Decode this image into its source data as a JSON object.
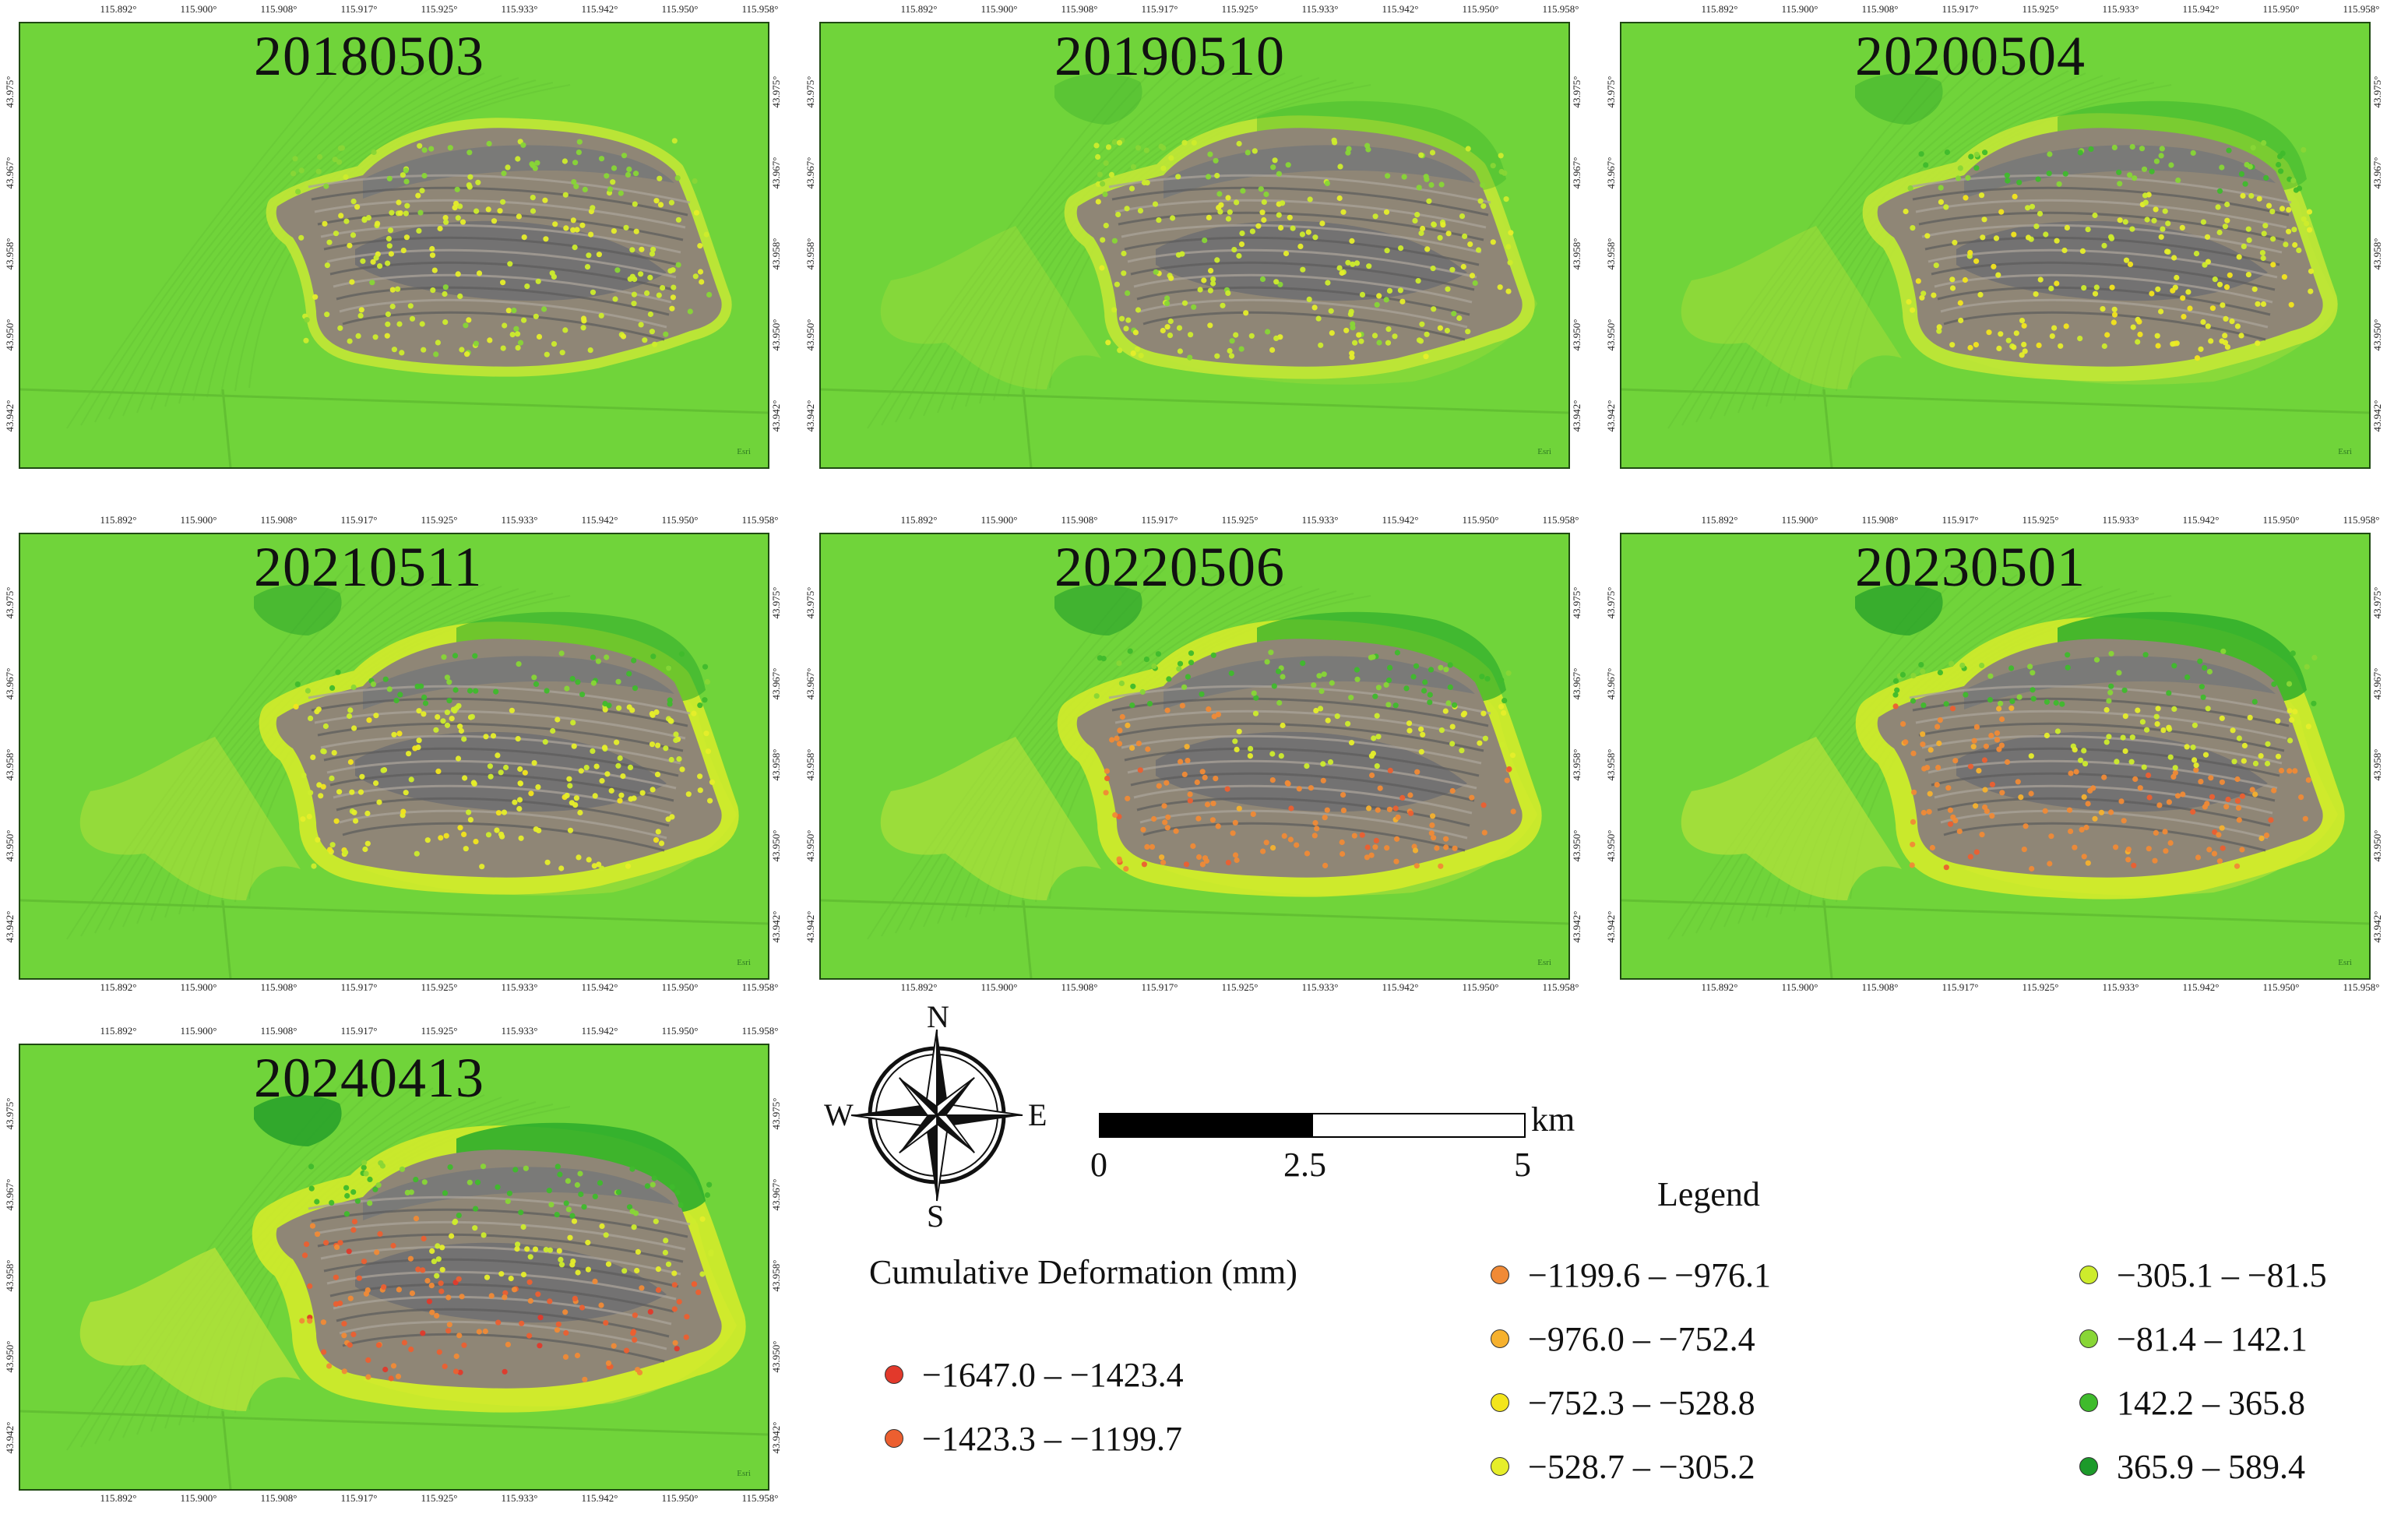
{
  "figure": {
    "panels": [
      {
        "date": "20180503",
        "stage": 0
      },
      {
        "date": "20190510",
        "stage": 1
      },
      {
        "date": "20200504",
        "stage": 2
      },
      {
        "date": "20210511",
        "stage": 3
      },
      {
        "date": "20220506",
        "stage": 4
      },
      {
        "date": "20230501",
        "stage": 5
      },
      {
        "date": "20240413",
        "stage": 6
      }
    ],
    "longitude_ticks": [
      "115.892°",
      "115.900°",
      "115.908°",
      "115.917°",
      "115.925°",
      "115.933°",
      "115.942°",
      "115.950°",
      "115.958°"
    ],
    "latitude_ticks": [
      "43.975°",
      "43.967°",
      "43.958°",
      "43.950°",
      "43.942°"
    ],
    "credit": "Esri"
  },
  "compass": {
    "n": "N",
    "s": "S",
    "e": "E",
    "w": "W"
  },
  "scale_bar": {
    "unit": "km",
    "labels": [
      "0",
      "2.5",
      "5"
    ]
  },
  "legend": {
    "title": "Legend",
    "subtitle": "Cumulative Deformation (mm)",
    "classes": [
      {
        "label": "−1647.0 – −1423.4",
        "color": "#e2392b"
      },
      {
        "label": "−1423.3 – −1199.7",
        "color": "#ec5f30"
      },
      {
        "label": "−1199.6 – −976.1",
        "color": "#f08a36"
      },
      {
        "label": "−976.0 – −752.4",
        "color": "#f6b12e"
      },
      {
        "label": "−752.3 – −528.8",
        "color": "#f3e51c"
      },
      {
        "label": "−528.7 – −305.2",
        "color": "#e6ee2a"
      },
      {
        "label": "−305.1 – −81.5",
        "color": "#cdec2c"
      },
      {
        "label": "−81.4 – 142.1",
        "color": "#88d636"
      },
      {
        "label": "142.2 – 365.8",
        "color": "#3fbb2c"
      },
      {
        "label": "365.9 – 589.4",
        "color": "#1c9a2a"
      }
    ]
  }
}
